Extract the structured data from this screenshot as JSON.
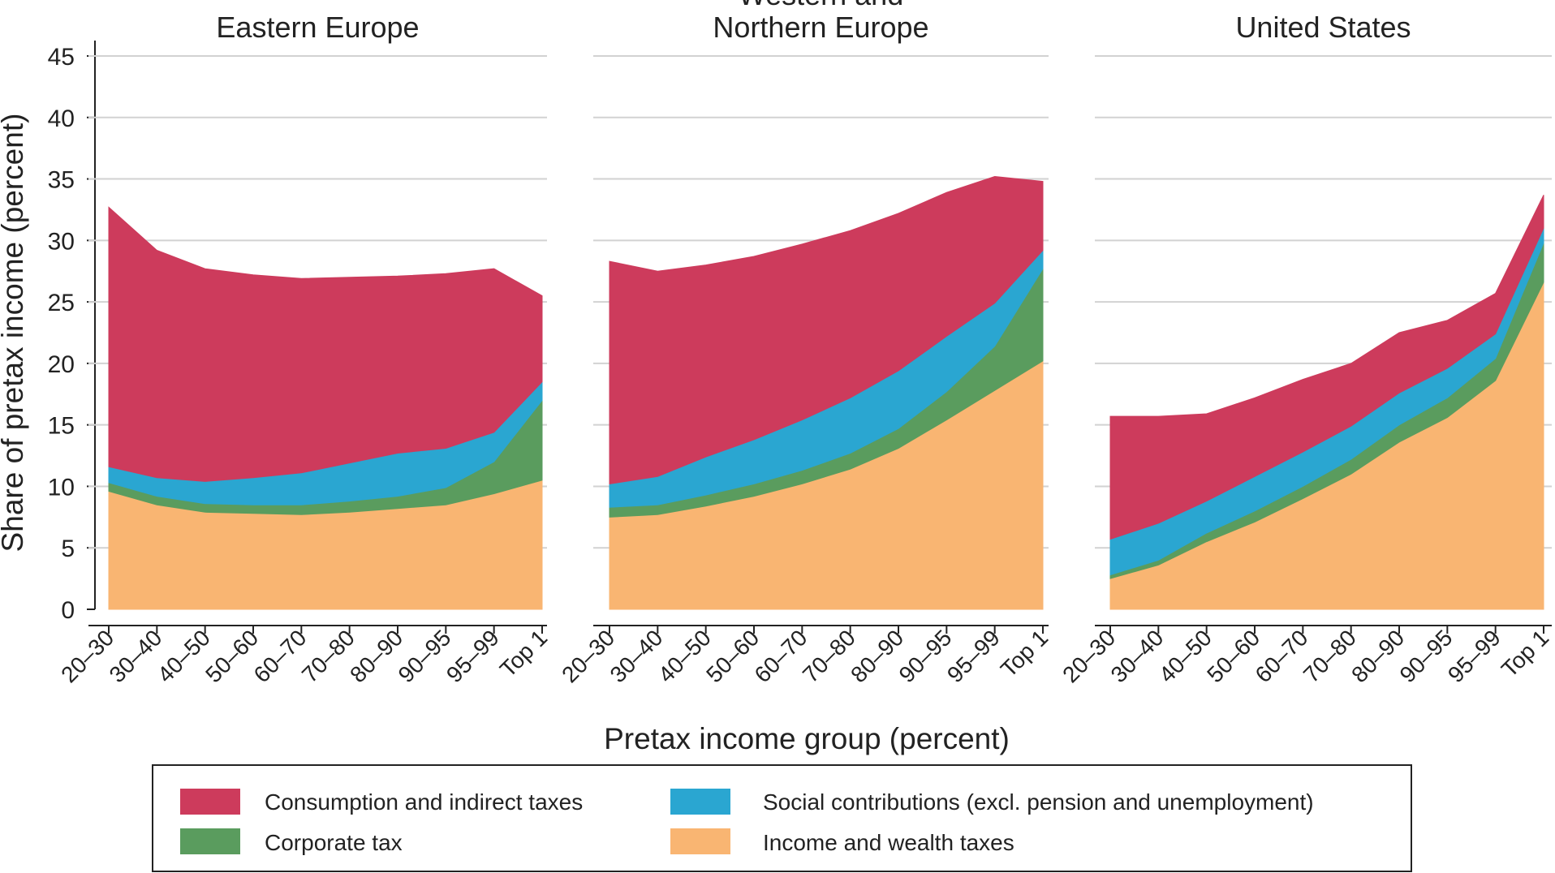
{
  "chart_data": {
    "type": "area",
    "stacked": true,
    "categories": [
      "20–30",
      "30–40",
      "40–50",
      "50–60",
      "60–70",
      "70–80",
      "80–90",
      "90–95",
      "95–99",
      "Top 1"
    ],
    "ylabel": "Share of pretax income (percent)",
    "xlabel": "Pretax income group (percent)",
    "ylim": [
      0,
      45
    ],
    "yticks": [
      0,
      5,
      10,
      15,
      20,
      25,
      30,
      35,
      40,
      45
    ],
    "grid": true,
    "legend": {
      "placement": "bottom",
      "entries": [
        {
          "key": "consumption",
          "label": "Consumption and indirect taxes",
          "color": "#cd3b5c"
        },
        {
          "key": "social",
          "label": "Social contributions (excl. pension and unemployment)",
          "color": "#2aa6d1"
        },
        {
          "key": "corporate",
          "label": "Corporate tax",
          "color": "#5a9c5e"
        },
        {
          "key": "income",
          "label": "Income and wealth taxes",
          "color": "#f9b572"
        }
      ]
    },
    "stack_order": [
      "income",
      "corporate",
      "social",
      "consumption"
    ],
    "panels": [
      {
        "title_lines": [
          "Eastern Europe"
        ],
        "series": {
          "income": [
            9.6,
            8.5,
            7.9,
            7.8,
            7.7,
            7.9,
            8.2,
            8.5,
            9.4,
            10.5
          ],
          "corporate": [
            0.7,
            0.7,
            0.7,
            0.7,
            0.8,
            0.9,
            1.0,
            1.4,
            2.6,
            6.5
          ],
          "social": [
            1.3,
            1.5,
            1.8,
            2.2,
            2.6,
            3.1,
            3.5,
            3.2,
            2.4,
            1.5
          ],
          "consumption": [
            21.1,
            18.5,
            17.3,
            16.5,
            15.8,
            15.1,
            14.4,
            14.2,
            13.3,
            7.0
          ]
        }
      },
      {
        "title_lines": [
          "Western and",
          "Northern Europe"
        ],
        "series": {
          "income": [
            7.5,
            7.7,
            8.4,
            9.2,
            10.2,
            11.4,
            13.1,
            15.4,
            17.8,
            20.2
          ],
          "corporate": [
            0.8,
            0.8,
            0.9,
            1.0,
            1.1,
            1.3,
            1.6,
            2.3,
            3.6,
            7.5
          ],
          "social": [
            1.9,
            2.3,
            3.1,
            3.6,
            4.1,
            4.5,
            4.7,
            4.5,
            3.5,
            1.5
          ],
          "consumption": [
            18.1,
            16.7,
            15.6,
            14.9,
            14.3,
            13.6,
            12.8,
            11.7,
            10.3,
            5.6
          ]
        }
      },
      {
        "title_lines": [
          "United States"
        ],
        "series": {
          "income": [
            2.5,
            3.6,
            5.5,
            7.1,
            9.0,
            11.0,
            13.6,
            15.6,
            18.6,
            26.6
          ],
          "corporate": [
            0.3,
            0.4,
            0.7,
            0.9,
            1.0,
            1.2,
            1.4,
            1.6,
            1.8,
            3.2
          ],
          "social": [
            2.9,
            3.0,
            2.6,
            2.8,
            2.8,
            2.7,
            2.6,
            2.4,
            2.0,
            1.2
          ],
          "consumption": [
            10.0,
            8.7,
            7.1,
            6.4,
            5.9,
            5.1,
            4.9,
            3.9,
            3.3,
            2.7
          ]
        }
      }
    ]
  }
}
